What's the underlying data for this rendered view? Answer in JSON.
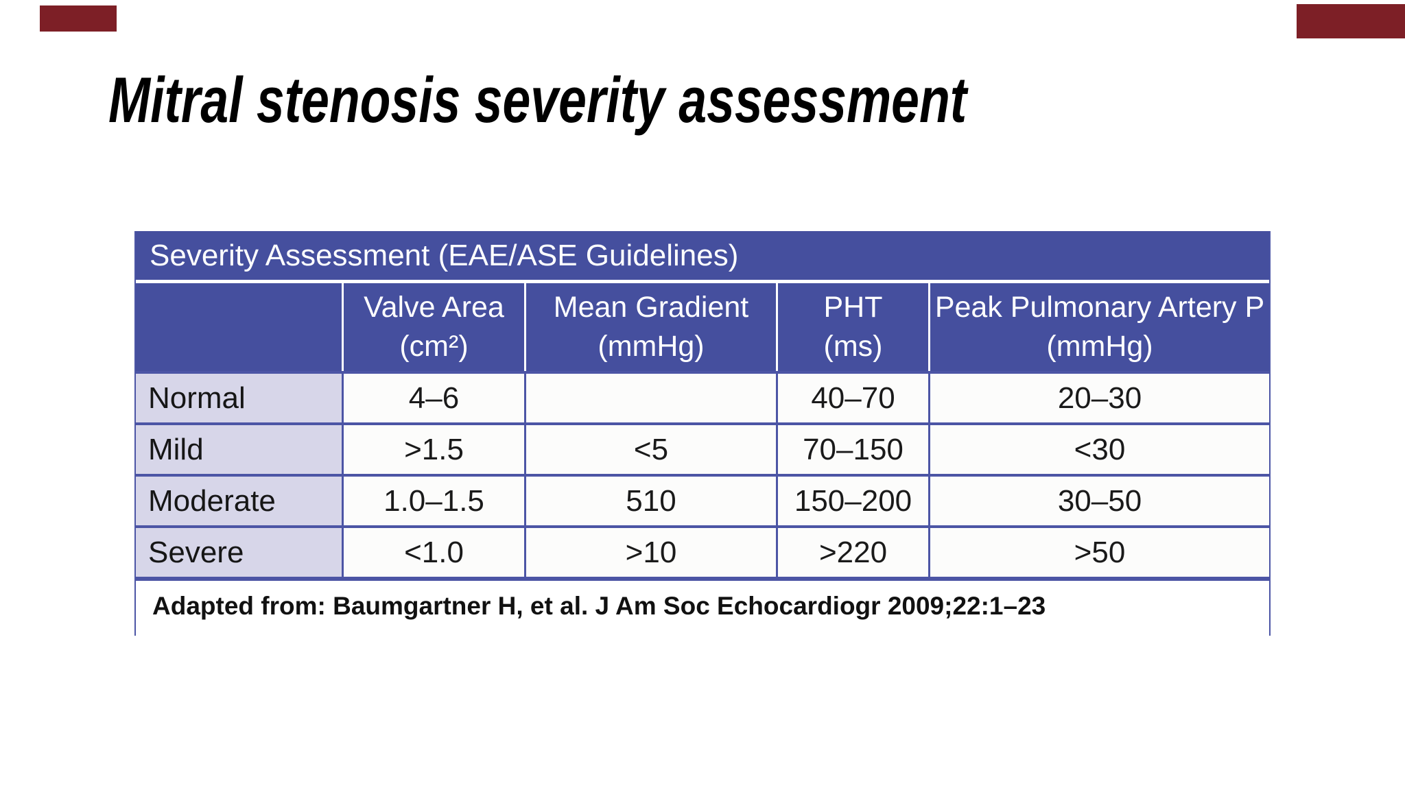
{
  "slide": {
    "title": "Mitral stenosis severity assessment"
  },
  "colors": {
    "table_header_bg": "#454F9E",
    "row_label_bg": "#D7D6E9",
    "table_border": "#4C55A5",
    "cell_bg": "#FCFCFB",
    "accent_red": "#7D1F26",
    "page_bg": "#FFFFFF"
  },
  "table": {
    "title": "Severity Assessment (EAE/ASE Guidelines)",
    "columns": [
      {
        "line1": "",
        "line2": ""
      },
      {
        "line1": "Valve Area",
        "line2": "(cm²)"
      },
      {
        "line1": "Mean Gradient",
        "line2": "(mmHg)"
      },
      {
        "line1": "PHT",
        "line2": "(ms)"
      },
      {
        "line1": "Peak Pulmonary Artery P",
        "line2": "(mmHg)"
      }
    ],
    "rows": [
      {
        "label": "Normal",
        "valve_area": "4–6",
        "mean_gradient": "",
        "pht": "40–70",
        "papp": "20–30"
      },
      {
        "label": "Mild",
        "valve_area": ">1.5",
        "mean_gradient": "<5",
        "pht": "70–150",
        "papp": "<30"
      },
      {
        "label": "Moderate",
        "valve_area": "1.0–1.5",
        "mean_gradient": "510",
        "pht": "150–200",
        "papp": "30–50"
      },
      {
        "label": "Severe",
        "valve_area": "<1.0",
        "mean_gradient": ">10",
        "pht": ">220",
        "papp": ">50"
      }
    ],
    "footer": "Adapted from: Baumgartner H, et al. J Am Soc Echocardiogr 2009;22:1–23"
  }
}
